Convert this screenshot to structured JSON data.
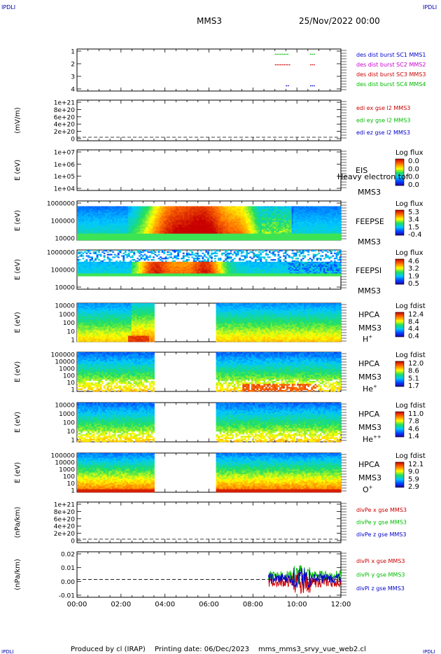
{
  "header": {
    "corner_tag": "IPDLI",
    "title": "MMS3",
    "date": "25/Nov/2022 00:00"
  },
  "footer": {
    "produced_by": "Produced by cl (IRAP)",
    "printing_date": "Printing date: 06/Dec/2023",
    "script": "mms_mms3_srvy_vue_web2.cl"
  },
  "colors": {
    "mms1": "#0000cc",
    "mms2": "#cc00cc",
    "mms3": "#cc0000",
    "mms4": "#00bb00"
  },
  "chart_data": [
    {
      "type": "scatter",
      "id": "burst",
      "ylabel": "",
      "ylim": [
        0.5,
        4.5
      ],
      "y_ticks": [
        "1",
        "2",
        "3",
        "4"
      ],
      "legend": [
        {
          "label": "des dist burst SC1 MMS1",
          "color": "#0000cc"
        },
        {
          "label": "des dist burst SC2 MMS2",
          "color": "#cc00cc"
        },
        {
          "label": "des dist burst SC3 MMS3",
          "color": "#cc0000"
        },
        {
          "label": "des dist burst SC4 MMS4",
          "color": "#00bb00"
        }
      ],
      "series": [
        {
          "sc": 4,
          "intervals": [
            [
              9.0,
              9.6
            ],
            [
              10.6,
              10.8
            ]
          ],
          "color": "#00bb00"
        },
        {
          "sc": 3,
          "intervals": [
            [
              9.0,
              9.7
            ],
            [
              10.6,
              10.8
            ]
          ],
          "color": "#cc0000"
        },
        {
          "sc": 1,
          "intervals": [
            [
              9.5,
              9.6
            ],
            [
              10.6,
              10.8
            ]
          ],
          "color": "#0000cc"
        }
      ]
    },
    {
      "type": "line",
      "id": "edi",
      "ylabel": "(mV/m)",
      "y_ticks": [
        "1e+21",
        "8e+20",
        "6e+20",
        "4e+20",
        "2e+20",
        "0"
      ],
      "legend": [
        {
          "label": "edi ex gse l2 MMS3",
          "color": "#cc0000"
        },
        {
          "label": "edi ey gse l2 MMS3",
          "color": "#00bb00"
        },
        {
          "label": "edi ez gse l2 MMS3",
          "color": "#0000cc"
        }
      ]
    },
    {
      "type": "heatmap",
      "id": "eis",
      "ylabel": "E (eV)",
      "y_ticks": [
        "1e+07",
        "1e+06",
        "1e+05",
        "1e+04"
      ],
      "instrument": "EIS",
      "instrument_extra": "Heavy electron tof",
      "spacecraft": "MMS3",
      "cbar_title": "Log flux",
      "cbar_ticks": [
        "0.0",
        "0.0",
        "0.0",
        "0.0"
      ]
    },
    {
      "type": "heatmap",
      "id": "feepse",
      "ylabel": "E (eV)",
      "y_ticks": [
        "1000000",
        "100000",
        "10000"
      ],
      "instrument": "FEEPSE",
      "spacecraft": "MMS3",
      "cbar_title": "Log flux",
      "cbar_ticks": [
        "5.3",
        "3.4",
        "1.5",
        "-0.4"
      ]
    },
    {
      "type": "heatmap",
      "id": "feepsi",
      "ylabel": "E (eV)",
      "y_ticks": [
        "1000000",
        "100000",
        "10000"
      ],
      "instrument": "FEEPSI",
      "spacecraft": "MMS3",
      "cbar_title": "Log flux",
      "cbar_ticks": [
        "4.6",
        "3.2",
        "1.9",
        "0.5"
      ]
    },
    {
      "type": "heatmap",
      "id": "hpca_h",
      "ylabel": "E (eV)",
      "y_ticks": [
        "10000",
        "1000",
        "100",
        "10",
        "1"
      ],
      "instrument": "HPCA",
      "spacecraft": "MMS3",
      "species": "H",
      "species_sup": "+",
      "cbar_title": "Log fdist",
      "cbar_ticks": [
        "12.4",
        "8.4",
        "4.4",
        "0.4"
      ]
    },
    {
      "type": "heatmap",
      "id": "hpca_he",
      "ylabel": "E (eV)",
      "y_ticks": [
        "100000",
        "10000",
        "1000",
        "100",
        "10",
        "1"
      ],
      "instrument": "HPCA",
      "spacecraft": "MMS3",
      "species": "He",
      "species_sup": "+",
      "cbar_title": "Log fdist",
      "cbar_ticks": [
        "12.0",
        "8.6",
        "5.1",
        "1.7"
      ]
    },
    {
      "type": "heatmap",
      "id": "hpca_hepp",
      "ylabel": "E (eV)",
      "y_ticks": [
        "10000",
        "1000",
        "100",
        "10",
        "1"
      ],
      "instrument": "HPCA",
      "spacecraft": "MMS3",
      "species": "He",
      "species_sup": "++",
      "cbar_title": "Log fdist",
      "cbar_ticks": [
        "11.0",
        "7.8",
        "4.6",
        "1.4"
      ]
    },
    {
      "type": "heatmap",
      "id": "hpca_o",
      "ylabel": "E (eV)",
      "y_ticks": [
        "100000",
        "10000",
        "1000",
        "100",
        "10",
        "1"
      ],
      "instrument": "HPCA",
      "spacecraft": "MMS3",
      "species": "O",
      "species_sup": "+",
      "cbar_title": "Log fdist",
      "cbar_ticks": [
        "12.1",
        "9.0",
        "5.9",
        "2.9"
      ]
    },
    {
      "type": "line",
      "id": "divpe",
      "ylabel": "(nPa/km)",
      "y_ticks": [
        "1e+21",
        "8e+20",
        "6e+20",
        "4e+20",
        "2e+20",
        "0"
      ],
      "legend": [
        {
          "label": "divPe x gse MMS3",
          "color": "#cc0000"
        },
        {
          "label": "divPe y gse MMS3",
          "color": "#00bb00"
        },
        {
          "label": "divPe z gse MMS3",
          "color": "#0000cc"
        }
      ]
    },
    {
      "type": "line",
      "id": "divpi",
      "ylabel": "(nPa/km)",
      "y_ticks": [
        "0.02",
        "0.01",
        "0.00",
        "-0.01"
      ],
      "ylim": [
        -0.018,
        0.028
      ],
      "legend": [
        {
          "label": "divPi x gse MMS3",
          "color": "#cc0000"
        },
        {
          "label": "divPi y gse MMS3",
          "color": "#00bb00"
        },
        {
          "label": "divPi z gse MMS3",
          "color": "#0000cc"
        }
      ]
    }
  ],
  "x_axis": {
    "tick_labels": [
      "00:00",
      "02:00",
      "04:00",
      "06:00",
      "08:00",
      "10:00",
      "12:00"
    ],
    "range_hours": [
      0,
      12
    ]
  },
  "hpca_data_gap_hours": [
    3.55,
    6.3
  ],
  "divpi_data_start_hours": 8.7
}
